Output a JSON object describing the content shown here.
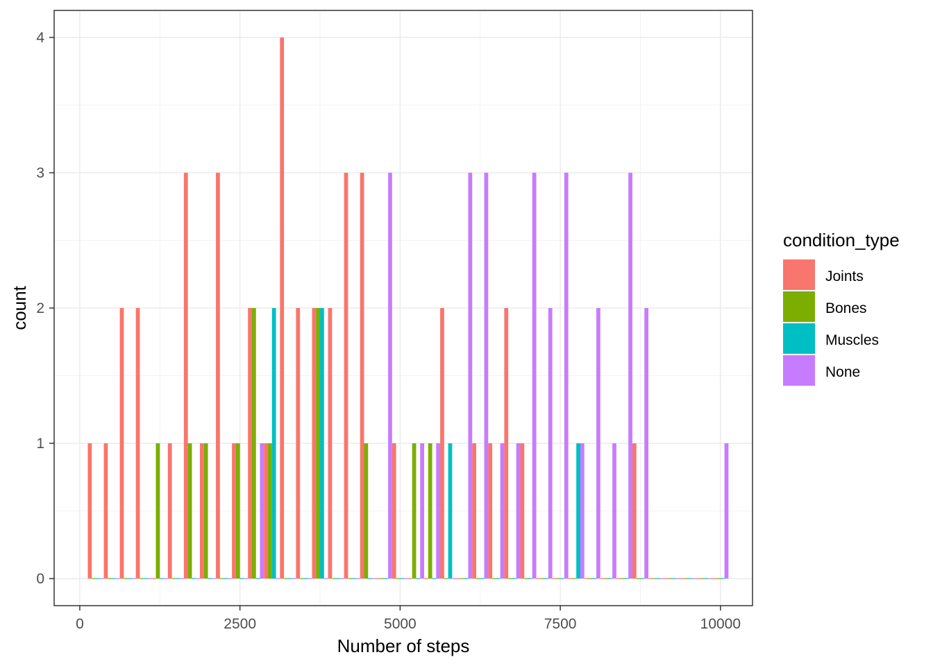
{
  "chart_data": {
    "type": "bar",
    "subtype": "histogram (position: dodge)",
    "xlabel": "Number of steps",
    "ylabel": "count",
    "xlim": [
      -400,
      10500
    ],
    "ylim": [
      -0.2,
      4.2
    ],
    "x_ticks": [
      0,
      2500,
      5000,
      7500,
      10000
    ],
    "x_tick_labels": [
      "0",
      "2500",
      "5000",
      "7500",
      "10000"
    ],
    "y_ticks": [
      0,
      1,
      2,
      3,
      4
    ],
    "y_tick_labels": [
      "0",
      "1",
      "2",
      "3",
      "4"
    ],
    "grid": true,
    "bin_width": 250,
    "x": [
      250,
      500,
      750,
      1000,
      1250,
      1500,
      1750,
      2000,
      2250,
      2500,
      2750,
      3000,
      3250,
      3500,
      3750,
      4000,
      4250,
      4500,
      4750,
      5000,
      5250,
      5500,
      5750,
      6000,
      6250,
      6500,
      6750,
      7000,
      7250,
      7500,
      7750,
      8000,
      8250,
      8500,
      8750,
      9000,
      9250,
      9500,
      9750,
      10000
    ],
    "series": [
      {
        "name": "Joints",
        "color": "#F8766D",
        "values": [
          1,
          1,
          2,
          2,
          0,
          1,
          3,
          1,
          3,
          1,
          2,
          1,
          4,
          2,
          2,
          2,
          3,
          3,
          0,
          1,
          0,
          0,
          2,
          0,
          1,
          1,
          2,
          1,
          0,
          0,
          0,
          0,
          0,
          0,
          1,
          0,
          0,
          0,
          0,
          0
        ]
      },
      {
        "name": "Bones",
        "color": "#7CAE00",
        "values": [
          0,
          0,
          0,
          0,
          1,
          0,
          1,
          1,
          0,
          1,
          2,
          1,
          0,
          0,
          2,
          0,
          0,
          1,
          0,
          0,
          1,
          1,
          0,
          0,
          0,
          0,
          0,
          0,
          0,
          0,
          0,
          0,
          0,
          0,
          0,
          0,
          0,
          0,
          0,
          0
        ]
      },
      {
        "name": "Muscles",
        "color": "#00BFC4",
        "values": [
          0,
          0,
          0,
          0,
          0,
          0,
          0,
          0,
          0,
          0,
          0,
          2,
          0,
          0,
          2,
          0,
          0,
          0,
          0,
          0,
          0,
          0,
          1,
          0,
          0,
          0,
          0,
          0,
          0,
          0,
          1,
          0,
          0,
          0,
          0,
          0,
          0,
          0,
          0,
          0
        ]
      },
      {
        "name": "None",
        "color": "#C77CFF",
        "values": [
          0,
          0,
          0,
          0,
          0,
          0,
          0,
          0,
          0,
          0,
          1,
          0,
          0,
          0,
          0,
          0,
          0,
          0,
          3,
          0,
          1,
          1,
          0,
          3,
          3,
          1,
          1,
          3,
          2,
          3,
          1,
          2,
          1,
          3,
          2,
          0,
          0,
          0,
          0,
          1
        ]
      }
    ],
    "legend": {
      "title": "condition_type",
      "position": "right",
      "items": [
        "Joints",
        "Bones",
        "Muscles",
        "None"
      ]
    }
  }
}
